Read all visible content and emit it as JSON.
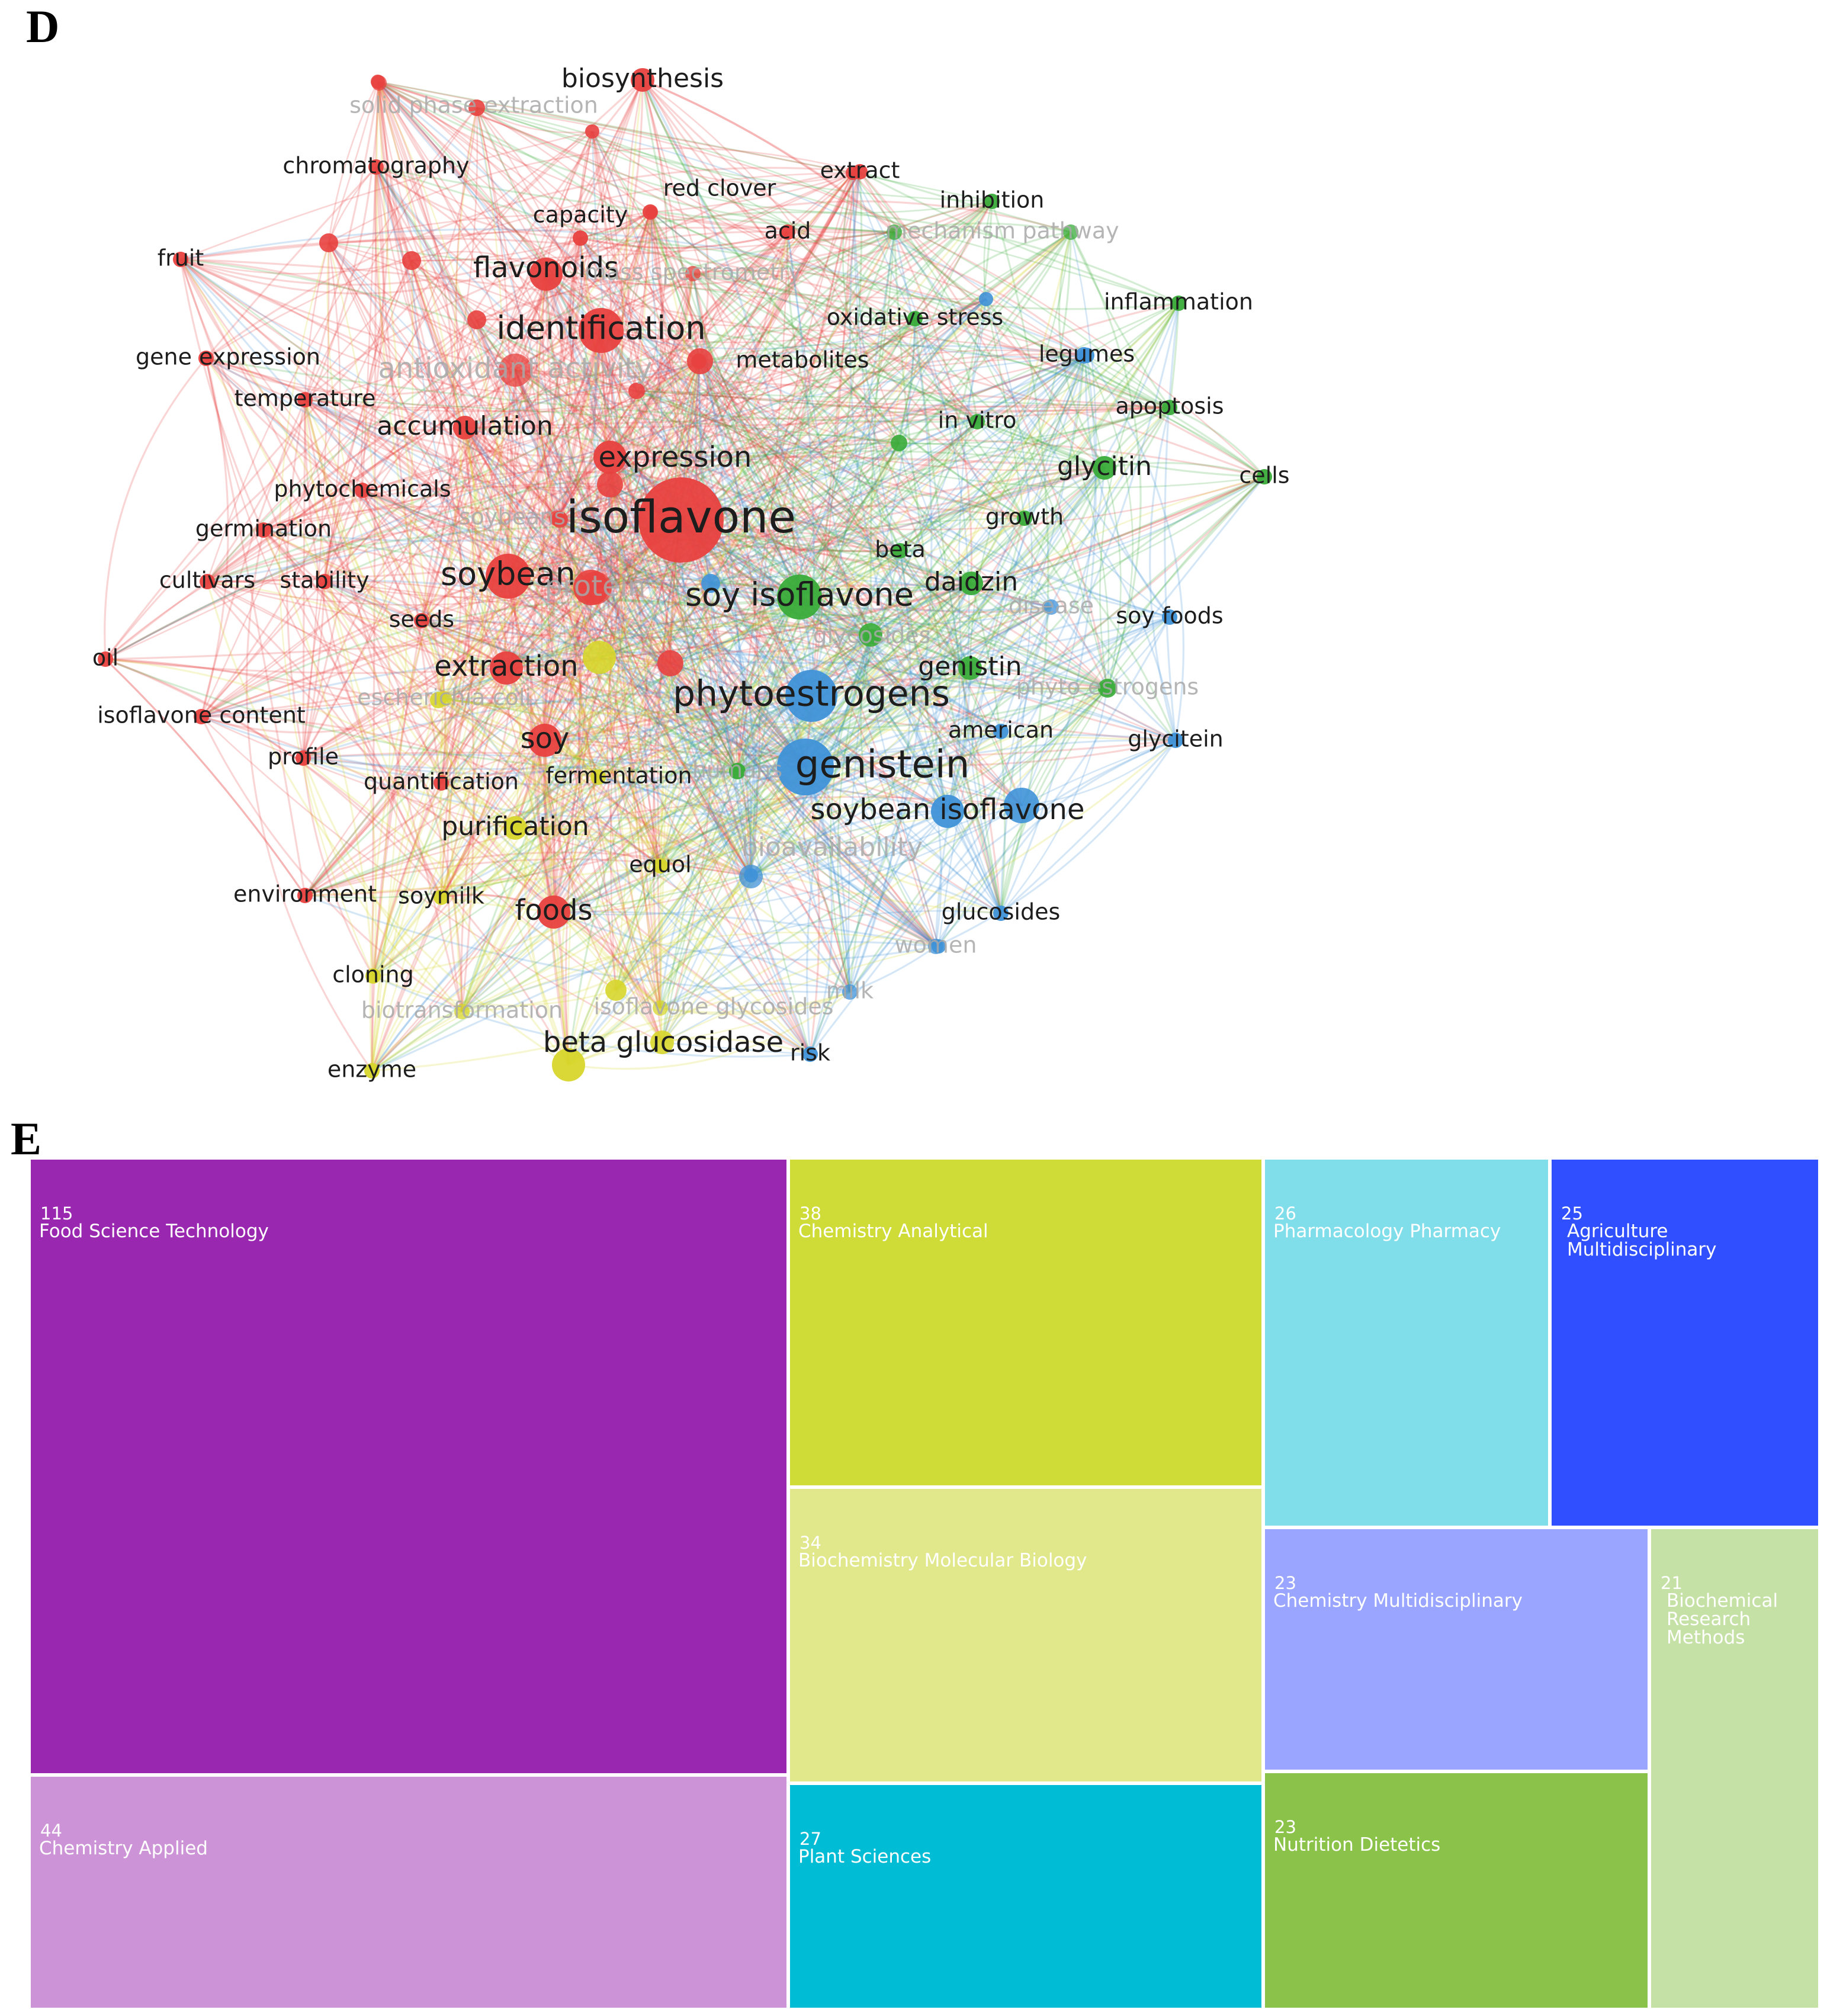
{
  "panel_d_label": "D",
  "panel_e_label": "E",
  "chart_data": [
    {
      "type": "network",
      "clusters": {
        "red": "#e8413f",
        "green": "#3aac3a",
        "blue": "#3f92d8",
        "yellow": "#d7d62b"
      },
      "nodes": [
        {
          "label": "isoflavone",
          "cluster": "red",
          "weight": 10,
          "emph": "strong"
        },
        {
          "label": "biosynthesis",
          "cluster": "red",
          "weight": 3,
          "emph": "normal"
        },
        {
          "label": "solid phase extraction",
          "cluster": "red",
          "weight": 2,
          "emph": "faded"
        },
        {
          "label": "chromatography",
          "cluster": "red",
          "weight": 2,
          "emph": "normal"
        },
        {
          "label": "red clover",
          "cluster": "red",
          "weight": 2,
          "emph": "normal"
        },
        {
          "label": "extract",
          "cluster": "red",
          "weight": 2,
          "emph": "normal"
        },
        {
          "label": "capacity",
          "cluster": "red",
          "weight": 2,
          "emph": "normal"
        },
        {
          "label": "acid",
          "cluster": "red",
          "weight": 2,
          "emph": "normal"
        },
        {
          "label": "fruit",
          "cluster": "red",
          "weight": 2,
          "emph": "normal"
        },
        {
          "label": "flavonoids",
          "cluster": "red",
          "weight": 4,
          "emph": "normal"
        },
        {
          "label": "mass spectrometry",
          "cluster": "red",
          "weight": 2,
          "emph": "faded"
        },
        {
          "label": "identification",
          "cluster": "red",
          "weight": 5,
          "emph": "normal"
        },
        {
          "label": "gene expression",
          "cluster": "red",
          "weight": 2,
          "emph": "normal"
        },
        {
          "label": "antioxidant activity",
          "cluster": "red",
          "weight": 4,
          "emph": "faded"
        },
        {
          "label": "metabolites",
          "cluster": "red",
          "weight": 2,
          "emph": "normal"
        },
        {
          "label": "temperature",
          "cluster": "red",
          "weight": 2,
          "emph": "normal"
        },
        {
          "label": "accumulation",
          "cluster": "red",
          "weight": 3,
          "emph": "normal"
        },
        {
          "label": "expression",
          "cluster": "red",
          "weight": 4,
          "emph": "normal"
        },
        {
          "label": "phytochemicals",
          "cluster": "red",
          "weight": 2,
          "emph": "normal"
        },
        {
          "label": "germination",
          "cluster": "red",
          "weight": 2,
          "emph": "normal"
        },
        {
          "label": "soybeans",
          "cluster": "red",
          "weight": 2,
          "emph": "faded"
        },
        {
          "label": "cultivars",
          "cluster": "red",
          "weight": 2,
          "emph": "normal"
        },
        {
          "label": "stability",
          "cluster": "red",
          "weight": 2,
          "emph": "normal"
        },
        {
          "label": "soybean",
          "cluster": "red",
          "weight": 5,
          "emph": "normal"
        },
        {
          "label": "protein",
          "cluster": "red",
          "weight": 4,
          "emph": "faded"
        },
        {
          "label": "seeds",
          "cluster": "red",
          "weight": 2,
          "emph": "normal"
        },
        {
          "label": "oil",
          "cluster": "red",
          "weight": 2,
          "emph": "normal"
        },
        {
          "label": "extraction",
          "cluster": "red",
          "weight": 4,
          "emph": "normal"
        },
        {
          "label": "isoflavone content",
          "cluster": "red",
          "weight": 2,
          "emph": "normal"
        },
        {
          "label": "profile",
          "cluster": "red",
          "weight": 2,
          "emph": "normal"
        },
        {
          "label": "soy",
          "cluster": "red",
          "weight": 4,
          "emph": "normal"
        },
        {
          "label": "quantification",
          "cluster": "red",
          "weight": 2,
          "emph": "normal"
        },
        {
          "label": "environment",
          "cluster": "red",
          "weight": 2,
          "emph": "normal"
        },
        {
          "label": "foods",
          "cluster": "red",
          "weight": 4,
          "emph": "normal"
        },
        {
          "label": "inhibition",
          "cluster": "green",
          "weight": 2,
          "emph": "normal"
        },
        {
          "label": "mechanism",
          "cluster": "green",
          "weight": 2,
          "emph": "faded"
        },
        {
          "label": "pathway",
          "cluster": "green",
          "weight": 2,
          "emph": "faded"
        },
        {
          "label": "oxidative stress",
          "cluster": "green",
          "weight": 2,
          "emph": "normal"
        },
        {
          "label": "inflammation",
          "cluster": "green",
          "weight": 2,
          "emph": "normal"
        },
        {
          "label": "apoptosis",
          "cluster": "green",
          "weight": 2,
          "emph": "normal"
        },
        {
          "label": "in vitro",
          "cluster": "green",
          "weight": 2,
          "emph": "normal"
        },
        {
          "label": "glycitin",
          "cluster": "green",
          "weight": 3,
          "emph": "normal"
        },
        {
          "label": "cells",
          "cluster": "green",
          "weight": 2,
          "emph": "normal"
        },
        {
          "label": "growth",
          "cluster": "green",
          "weight": 2,
          "emph": "normal"
        },
        {
          "label": "beta",
          "cluster": "green",
          "weight": 2,
          "emph": "normal"
        },
        {
          "label": "daidzin",
          "cluster": "green",
          "weight": 3,
          "emph": "normal"
        },
        {
          "label": "soy isoflavone",
          "cluster": "green",
          "weight": 5,
          "emph": "normal"
        },
        {
          "label": "glycosides",
          "cluster": "green",
          "weight": 2,
          "emph": "faded"
        },
        {
          "label": "genistin",
          "cluster": "green",
          "weight": 3,
          "emph": "normal"
        },
        {
          "label": "phyto estrogens",
          "cluster": "green",
          "weight": 2,
          "emph": "faded"
        },
        {
          "label": "humans",
          "cluster": "green",
          "weight": 2,
          "emph": "faded"
        },
        {
          "label": "legumes",
          "cluster": "blue",
          "weight": 2,
          "emph": "normal"
        },
        {
          "label": "disease",
          "cluster": "blue",
          "weight": 2,
          "emph": "faded"
        },
        {
          "label": "soy foods",
          "cluster": "blue",
          "weight": 2,
          "emph": "normal"
        },
        {
          "label": "phytoestrogens",
          "cluster": "blue",
          "weight": 6,
          "emph": "normal"
        },
        {
          "label": "american",
          "cluster": "blue",
          "weight": 2,
          "emph": "normal"
        },
        {
          "label": "glycitein",
          "cluster": "blue",
          "weight": 2,
          "emph": "normal"
        },
        {
          "label": "genistein",
          "cluster": "blue",
          "weight": 7,
          "emph": "normal"
        },
        {
          "label": "soybean isoflavone",
          "cluster": "blue",
          "weight": 4,
          "emph": "normal"
        },
        {
          "label": "bioavailability",
          "cluster": "blue",
          "weight": 3,
          "emph": "faded"
        },
        {
          "label": "glucosides",
          "cluster": "blue",
          "weight": 2,
          "emph": "normal"
        },
        {
          "label": "women",
          "cluster": "blue",
          "weight": 2,
          "emph": "faded"
        },
        {
          "label": "milk",
          "cluster": "blue",
          "weight": 2,
          "emph": "faded"
        },
        {
          "label": "risk",
          "cluster": "blue",
          "weight": 2,
          "emph": "normal"
        },
        {
          "label": "equol",
          "cluster": "yellow",
          "weight": 2,
          "emph": "normal"
        },
        {
          "label": "purification",
          "cluster": "yellow",
          "weight": 3,
          "emph": "normal"
        },
        {
          "label": "fermentation",
          "cluster": "yellow",
          "weight": 2,
          "emph": "normal"
        },
        {
          "label": "soymilk",
          "cluster": "yellow",
          "weight": 2,
          "emph": "normal"
        },
        {
          "label": "cloning",
          "cluster": "yellow",
          "weight": 2,
          "emph": "normal"
        },
        {
          "label": "biotransformation",
          "cluster": "yellow",
          "weight": 2,
          "emph": "faded"
        },
        {
          "label": "isoflavone glycosides",
          "cluster": "yellow",
          "weight": 2,
          "emph": "faded"
        },
        {
          "label": "beta glucosidase",
          "cluster": "yellow",
          "weight": 4,
          "emph": "normal"
        },
        {
          "label": "enzyme",
          "cluster": "yellow",
          "weight": 2,
          "emph": "normal"
        },
        {
          "label": "escherichia coli",
          "cluster": "yellow",
          "weight": 2,
          "emph": "faded"
        }
      ]
    },
    {
      "type": "treemap",
      "cells": [
        {
          "value": 115,
          "label": "Food Science Technology",
          "color": "#9a27b0"
        },
        {
          "value": 44,
          "label": "Chemistry Applied",
          "color": "#cd93d7"
        },
        {
          "value": 38,
          "label": "Chemistry Analytical",
          "color": "#cfdc38"
        },
        {
          "value": 34,
          "label": "Biochemistry Molecular Biology",
          "color": "#e1e88c"
        },
        {
          "value": 27,
          "label": "Plant Sciences",
          "color": "#00bcd4"
        },
        {
          "value": 26,
          "label": "Pharmacology Pharmacy",
          "color": "#80deea"
        },
        {
          "value": 25,
          "label": "Agriculture\nMultidisciplinary",
          "color": "#304ffe"
        },
        {
          "value": 23,
          "label": "Chemistry Multidisciplinary",
          "color": "#9aa5ff"
        },
        {
          "value": 23,
          "label": "Nutrition Dietetics",
          "color": "#8bc34a"
        },
        {
          "value": 21,
          "label": "Biochemical\nResearch\nMethods",
          "color": "#c5e1a5"
        }
      ]
    }
  ]
}
